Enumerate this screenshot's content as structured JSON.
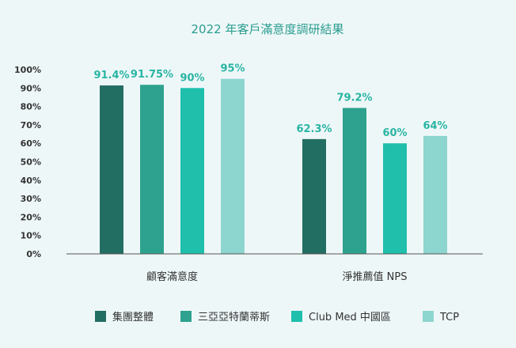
{
  "chart_data": {
    "type": "bar",
    "title": "2022 年客戶滿意度調研結果",
    "categories": [
      "顧客滿意度",
      "淨推薦值 NPS"
    ],
    "y_ticks": [
      "0%",
      "10%",
      "20%",
      "30%",
      "40%",
      "50%",
      "60%",
      "70%",
      "80%",
      "90%",
      "100%"
    ],
    "ylim": [
      0,
      100
    ],
    "grid": false,
    "legend_position": "bottom",
    "series": [
      {
        "name": "集團整體",
        "color": "#236e63",
        "values": [
          91.4,
          62.3
        ],
        "labels": [
          "91.4%",
          "62.3%"
        ]
      },
      {
        "name": "三亞亞特蘭蒂斯",
        "color": "#2ea28e",
        "values": [
          91.75,
          79.2
        ],
        "labels": [
          "91.75%",
          "79.2%"
        ]
      },
      {
        "name": "Club Med 中國區",
        "color": "#1fbfab",
        "values": [
          90,
          60
        ],
        "labels": [
          "90%",
          "60%"
        ]
      },
      {
        "name": "TCP",
        "color": "#8dd5cf",
        "values": [
          95,
          64
        ],
        "labels": [
          "95%",
          "64%"
        ]
      }
    ],
    "label_color": "#2ab5a3"
  }
}
